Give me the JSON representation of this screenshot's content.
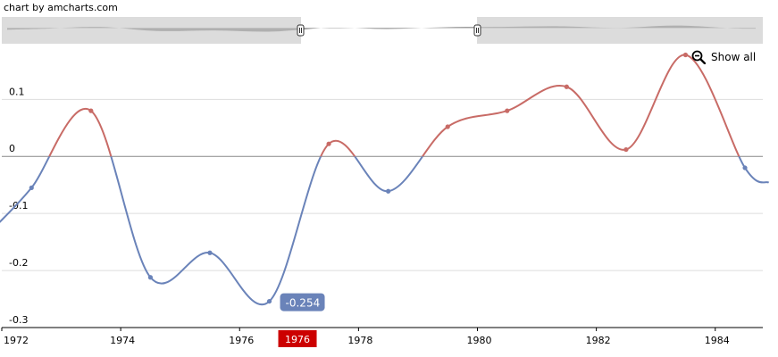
{
  "credit": "chart by amcharts.com",
  "show_all_label": "Show all",
  "cursor": {
    "x_label": "1976",
    "value_label": "-0.254"
  },
  "chart_data": {
    "type": "line",
    "title": "",
    "xlabel": "",
    "ylabel": "",
    "x_ticks": [
      "1972",
      "1974",
      "1976",
      "1978",
      "1980",
      "1982",
      "1984"
    ],
    "y_ticks": [
      {
        "value": 0.1,
        "label": "0.1"
      },
      {
        "value": 0,
        "label": "0"
      },
      {
        "value": -0.1,
        "label": "-0.1"
      },
      {
        "value": -0.2,
        "label": "-0.2"
      },
      {
        "value": -0.3,
        "label": "-0.3"
      }
    ],
    "xlim": [
      1972,
      1984.8
    ],
    "ylim": [
      -0.3,
      0.185
    ],
    "grid": true,
    "legend": "none",
    "negative_color": "#6a83b9",
    "positive_color": "#c86b66",
    "series": [
      {
        "values": [
          {
            "x": 1971.9,
            "y": -0.122
          },
          {
            "x": 1972.5,
            "y": -0.055
          },
          {
            "x": 1973.5,
            "y": 0.08
          },
          {
            "x": 1974.5,
            "y": -0.212
          },
          {
            "x": 1975.5,
            "y": -0.169
          },
          {
            "x": 1976.5,
            "y": -0.254
          },
          {
            "x": 1977.5,
            "y": 0.022
          },
          {
            "x": 1978.5,
            "y": -0.061
          },
          {
            "x": 1979.5,
            "y": 0.052
          },
          {
            "x": 1980.5,
            "y": 0.08
          },
          {
            "x": 1981.5,
            "y": 0.122
          },
          {
            "x": 1982.5,
            "y": 0.012
          },
          {
            "x": 1983.5,
            "y": 0.178
          },
          {
            "x": 1984.5,
            "y": -0.02
          },
          {
            "x": 1984.9,
            "y": -0.046
          }
        ]
      }
    ]
  }
}
